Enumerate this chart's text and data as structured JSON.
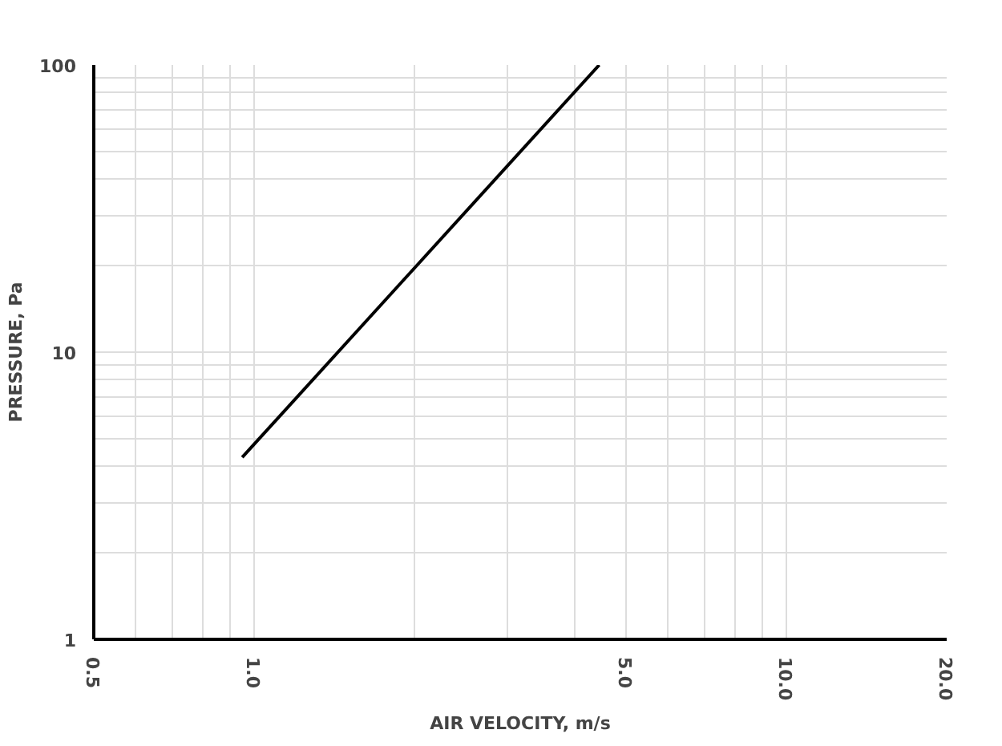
{
  "chart_data": {
    "type": "line",
    "xlabel": "AIR VELOCITY, m/s",
    "ylabel": "PRESSURE, Pa",
    "log": "xy",
    "grid": true,
    "x": [
      0.95,
      4.45
    ],
    "series": [
      {
        "color": "#000000",
        "values": [
          4.3,
          100
        ]
      }
    ],
    "xlim": [
      0.5,
      20
    ],
    "ylim": [
      1,
      100
    ],
    "xticks": [
      {
        "value": 0.5,
        "label": "0.5"
      },
      {
        "value": 1,
        "label": "1.0"
      },
      {
        "value": 5,
        "label": "5.0"
      },
      {
        "value": 10,
        "label": "10.0"
      },
      {
        "value": 20,
        "label": "20.0"
      }
    ],
    "yticks": [
      1,
      10,
      100
    ]
  }
}
